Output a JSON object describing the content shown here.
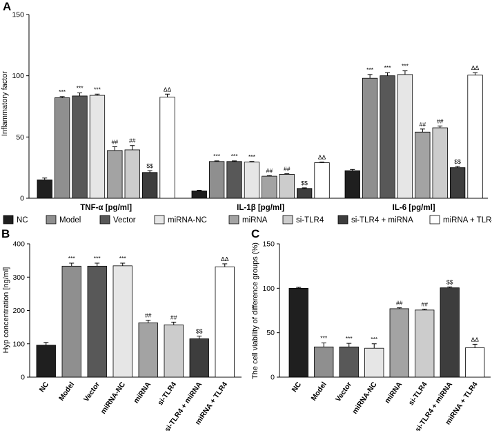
{
  "chart_data": [
    {
      "panel": "A",
      "type": "bar",
      "ylabel": "Inflammatory factor",
      "ylim": [
        0,
        150
      ],
      "yticks": [
        0,
        50,
        100,
        150
      ],
      "groups": [
        "TNF-α [pg/ml]",
        "IL-1β [pg/ml]",
        "IL-6 [pg/ml]"
      ],
      "legend": {
        "placement": "below-panel-A",
        "entries": [
          "NC",
          "Model",
          "Vector",
          "miRNA-NC",
          "miRNA",
          "si-TLR4",
          "si-TLR4 + miRNA",
          "miRNA + TLR4"
        ]
      },
      "series": [
        {
          "name": "NC",
          "color": "#1f1f1f",
          "values": [
            15,
            6,
            22.5
          ],
          "errors": [
            1.5,
            0.5,
            1
          ],
          "sig": [
            "",
            "",
            ""
          ]
        },
        {
          "name": "Model",
          "color": "#8f8f8f",
          "values": [
            82,
            30,
            98
          ],
          "errors": [
            1,
            0.5,
            3
          ],
          "sig": [
            "***",
            "***",
            "***"
          ]
        },
        {
          "name": "Vector",
          "color": "#585858",
          "values": [
            83.5,
            30,
            100
          ],
          "errors": [
            2.5,
            0.5,
            2.5
          ],
          "sig": [
            "***",
            "***",
            "***"
          ]
        },
        {
          "name": "miRNA-NC",
          "color": "#e6e6e6",
          "values": [
            84,
            29.5,
            101
          ],
          "errors": [
            1,
            0.5,
            3
          ],
          "sig": [
            "***",
            "***",
            "***"
          ]
        },
        {
          "name": "miRNA",
          "color": "#a3a3a3",
          "values": [
            39,
            18,
            54
          ],
          "errors": [
            3,
            0.5,
            2.5
          ],
          "sig": [
            "##",
            "##",
            "##"
          ]
        },
        {
          "name": "si-TLR4",
          "color": "#cccccc",
          "values": [
            39.5,
            19.5,
            57.5
          ],
          "errors": [
            3.5,
            0.5,
            1.5
          ],
          "sig": [
            "##",
            "##",
            "##"
          ]
        },
        {
          "name": "si-TLR4 + miRNA",
          "color": "#3d3d3d",
          "values": [
            21,
            8,
            25
          ],
          "errors": [
            1.5,
            0.5,
            1
          ],
          "sig": [
            "$$",
            "$$",
            "$$"
          ]
        },
        {
          "name": "miRNA + TLR4",
          "color": "#ffffff",
          "values": [
            82.5,
            29,
            100.5
          ],
          "errors": [
            2.5,
            0.5,
            2
          ],
          "sig": [
            "ΔΔ",
            "ΔΔ",
            "ΔΔ"
          ]
        }
      ]
    },
    {
      "panel": "B",
      "type": "bar",
      "ylabel": "Hyp concentration [ng/ml]",
      "ylim": [
        0,
        400
      ],
      "yticks": [
        0,
        100,
        200,
        300,
        400
      ],
      "categories": [
        "NC",
        "Model",
        "Vector",
        "miRNA-NC",
        "miRNA",
        "si-TLR4",
        "si-TLR4 + miRNA",
        "miRNA + TLR4"
      ],
      "colors": [
        "#1f1f1f",
        "#8f8f8f",
        "#585858",
        "#e6e6e6",
        "#a3a3a3",
        "#cccccc",
        "#3d3d3d",
        "#ffffff"
      ],
      "values": [
        96,
        333,
        333,
        334,
        163,
        157,
        115,
        331
      ],
      "errors": [
        8,
        9,
        9,
        8,
        8,
        8,
        8,
        9
      ],
      "sig": [
        "",
        "***",
        "***",
        "***",
        "##",
        "##",
        "$$",
        "ΔΔ"
      ]
    },
    {
      "panel": "C",
      "type": "bar",
      "ylabel": "The cell viability of difference groups (%)",
      "ylim": [
        0,
        150
      ],
      "yticks": [
        0,
        50,
        100,
        150
      ],
      "categories": [
        "NC",
        "Model",
        "Vector",
        "miRNA-NC",
        "miRNA",
        "si-TLR4",
        "si-TLR4 + miRNA",
        "miRNA + TLR4"
      ],
      "colors": [
        "#1f1f1f",
        "#8f8f8f",
        "#585858",
        "#e6e6e6",
        "#a3a3a3",
        "#cccccc",
        "#3d3d3d",
        "#ffffff"
      ],
      "values": [
        100,
        34,
        34,
        32.5,
        77,
        75.5,
        100.5,
        33
      ],
      "errors": [
        1,
        4.5,
        4,
        5,
        1,
        1,
        1,
        4
      ],
      "sig": [
        "",
        "***",
        "***",
        "***",
        "##",
        "##",
        "$$",
        "ΔΔ"
      ]
    }
  ]
}
